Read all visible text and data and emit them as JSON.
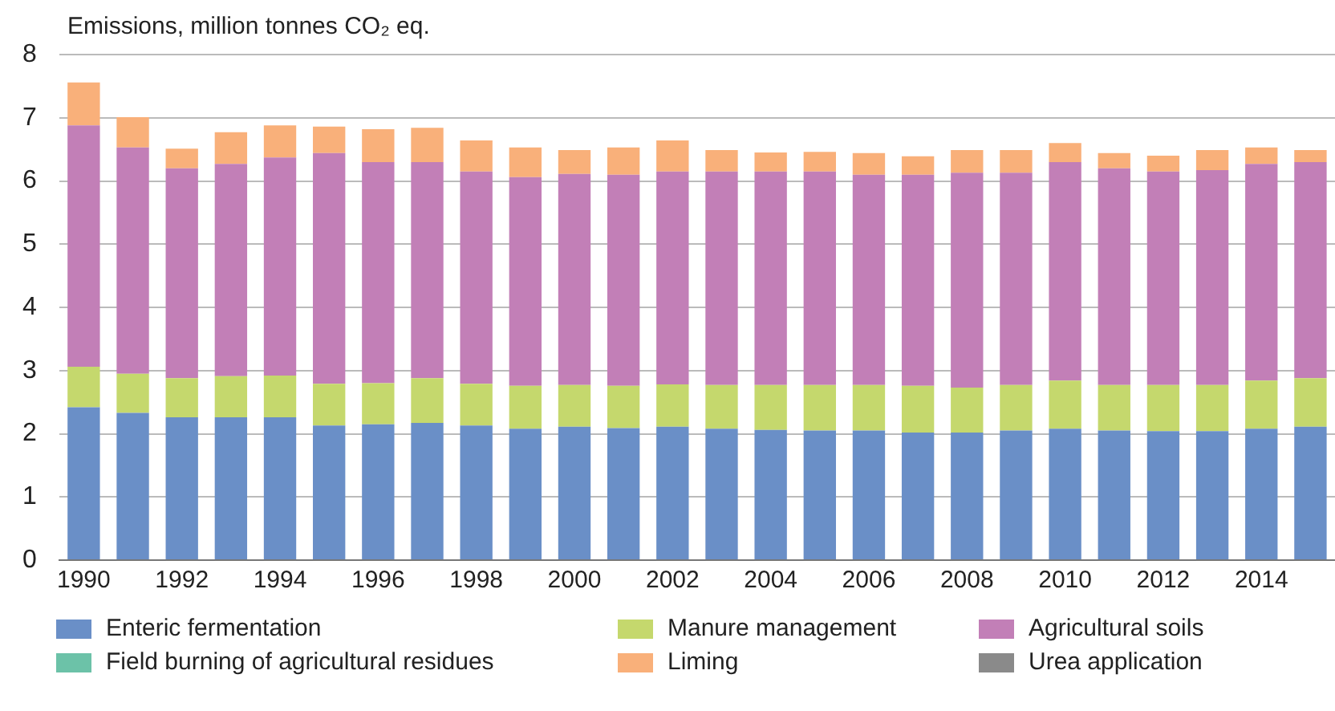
{
  "chart_data": {
    "type": "bar",
    "stacked": true,
    "ylabel": "Emissions, million tonnes CO₂ eq.",
    "categories": [
      "1990",
      null,
      "1992",
      null,
      "1994",
      null,
      "1996",
      null,
      "1998",
      null,
      "2000",
      null,
      "2002",
      null,
      "2004",
      null,
      "2006",
      null,
      "2008",
      null,
      "2010",
      null,
      "2012",
      null,
      "2014",
      null
    ],
    "ylim": [
      0,
      8
    ],
    "yticks": [
      0,
      1,
      2,
      3,
      4,
      5,
      6,
      7,
      8
    ],
    "grid": "y",
    "legend": "bottom",
    "series": [
      {
        "name": "Enteric fermentation",
        "color": "#6a8fc7",
        "values": [
          2.42,
          2.33,
          2.26,
          2.26,
          2.26,
          2.13,
          2.15,
          2.17,
          2.13,
          2.08,
          2.11,
          2.09,
          2.11,
          2.08,
          2.06,
          2.05,
          2.05,
          2.02,
          2.02,
          2.05,
          2.08,
          2.05,
          2.04,
          2.04,
          2.08,
          2.11
        ]
      },
      {
        "name": "Manure management",
        "color": "#c5d86d",
        "values": [
          0.64,
          0.62,
          0.62,
          0.65,
          0.66,
          0.66,
          0.65,
          0.71,
          0.66,
          0.68,
          0.66,
          0.67,
          0.67,
          0.69,
          0.71,
          0.72,
          0.72,
          0.74,
          0.71,
          0.72,
          0.76,
          0.72,
          0.73,
          0.73,
          0.76,
          0.77
        ]
      },
      {
        "name": "Agricultural soils",
        "color": "#c27fb7",
        "values": [
          3.82,
          3.58,
          3.32,
          3.36,
          3.45,
          3.65,
          3.5,
          3.42,
          3.36,
          3.3,
          3.34,
          3.34,
          3.37,
          3.38,
          3.38,
          3.38,
          3.33,
          3.34,
          3.4,
          3.36,
          3.46,
          3.43,
          3.38,
          3.4,
          3.43,
          3.42
        ]
      },
      {
        "name": "Field burning of agricultural residues",
        "color": "#6cc2a8",
        "values": [
          0,
          0,
          0,
          0,
          0,
          0,
          0,
          0,
          0,
          0,
          0,
          0,
          0,
          0,
          0,
          0,
          0,
          0,
          0,
          0,
          0,
          0,
          0,
          0,
          0,
          0
        ]
      },
      {
        "name": "Liming",
        "color": "#f9b07a",
        "values": [
          0.68,
          0.48,
          0.31,
          0.5,
          0.51,
          0.42,
          0.52,
          0.54,
          0.49,
          0.47,
          0.38,
          0.43,
          0.49,
          0.34,
          0.3,
          0.31,
          0.34,
          0.29,
          0.36,
          0.36,
          0.3,
          0.24,
          0.25,
          0.32,
          0.26,
          0.19
        ]
      },
      {
        "name": "Urea application",
        "color": "#8a8a8a",
        "values": [
          0,
          0,
          0,
          0,
          0,
          0,
          0,
          0,
          0,
          0,
          0,
          0,
          0,
          0,
          0,
          0,
          0,
          0,
          0,
          0,
          0,
          0,
          0,
          0,
          0,
          0
        ]
      }
    ]
  }
}
